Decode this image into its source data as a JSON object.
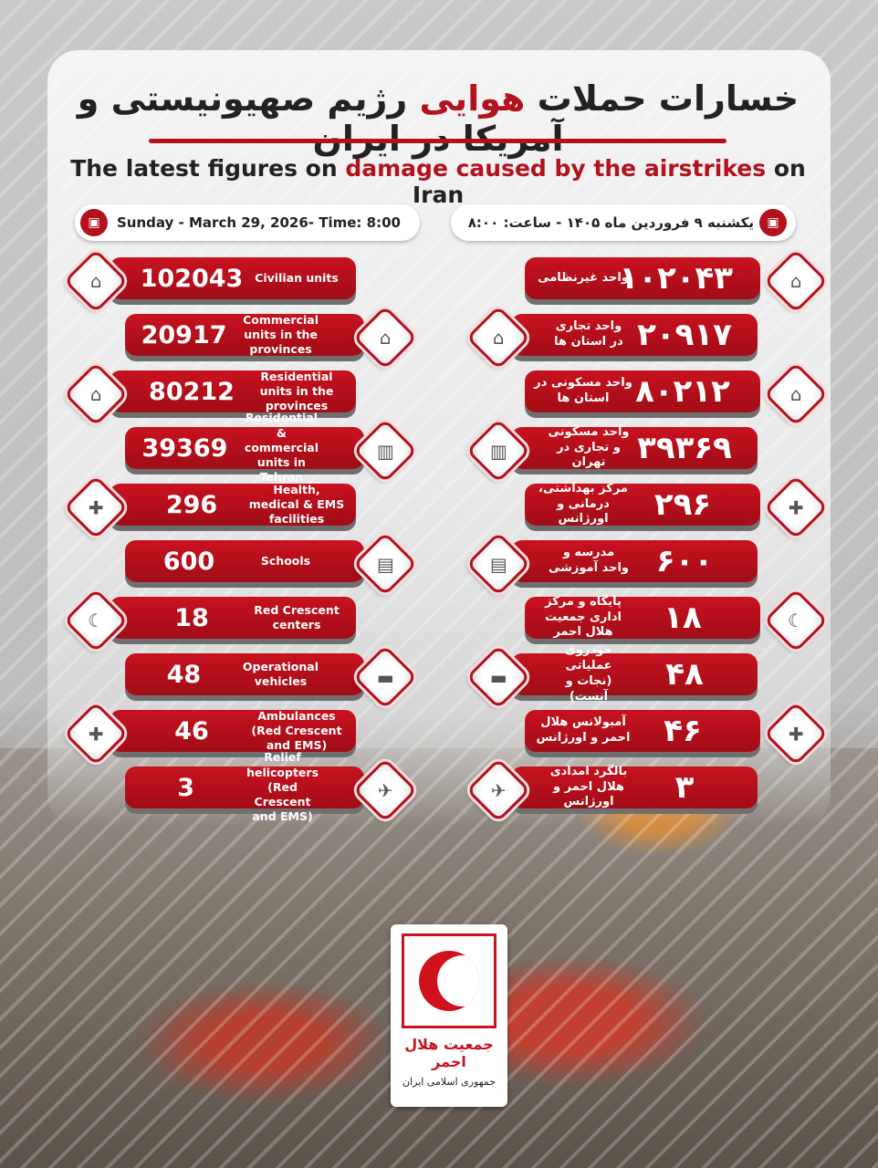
{
  "header": {
    "title_fa_pre": "خسارات حملات",
    "title_fa_hl": "هوایی",
    "title_fa_post": "رژیم صهیونیستی و آمریکا در ایران",
    "title_en_pre": "The latest figures on ",
    "title_en_hl": "damage caused by the airstrikes",
    "title_en_post": " on Iran"
  },
  "dates": {
    "en": "Sunday - March 29, 2026- Time: 8:00",
    "fa": "یکشنبه ۹ فروردین ماه ۱۴۰۵ - ساعت: ۸:۰۰",
    "icon": "calendar-icon"
  },
  "accent": "#b3121d",
  "rows": [
    {
      "icon": "house-icon",
      "glyph": "⌂",
      "en_num": "102043",
      "en_label": "Civilian units",
      "fa_num": "۱۰۲۰۴۳",
      "fa_label": "واحد غیرنظامی"
    },
    {
      "icon": "shop-house-icon",
      "glyph": "⌂",
      "en_num": "20917",
      "en_label": "Commercial units in the provinces",
      "fa_num": "۲۰۹۱۷",
      "fa_label": "واحد تجاری در استان ها"
    },
    {
      "icon": "home-icon",
      "glyph": "⌂",
      "en_num": "80212",
      "en_label": "Residential units in the provinces",
      "fa_num": "۸۰۲۱۲",
      "fa_label": "واحد مسکونی در استان ها"
    },
    {
      "icon": "storefront-icon",
      "glyph": "▥",
      "en_num": "39369",
      "en_label": "Residential & commercial units in Tehran",
      "fa_num": "۳۹۳۶۹",
      "fa_label": "واحد مسکونی و تجاری در تهران"
    },
    {
      "icon": "medical-building-icon",
      "glyph": "✚",
      "en_num": "296",
      "en_label": "Health, medical & EMS facilities",
      "fa_num": "۲۹۶",
      "fa_label": "مرکز بهداشتی، درمانی و اورژانس"
    },
    {
      "icon": "school-book-icon",
      "glyph": "▤",
      "en_num": "600",
      "en_label": "Schools",
      "fa_num": "۶۰۰",
      "fa_label": "مدرسه و واحد آموزشی"
    },
    {
      "icon": "red-crescent-building-icon",
      "glyph": "☾",
      "en_num": "18",
      "en_label": "Red Crescent centers",
      "fa_num": "۱۸",
      "fa_label": "پایگاه و مرکز اداری جمعیت هلال احمر"
    },
    {
      "icon": "car-icon",
      "glyph": "▬",
      "en_num": "48",
      "en_label": "Operational vehicles",
      "fa_num": "۴۸",
      "fa_label": "خودروی عملیاتی (نجات و آنست)"
    },
    {
      "icon": "ambulance-icon",
      "glyph": "✚",
      "en_num": "46",
      "en_label": "Ambulances (Red Crescent and EMS)",
      "fa_num": "۴۶",
      "fa_label": "آمبولانس هلال احمر و اورژانس"
    },
    {
      "icon": "helicopter-icon",
      "glyph": "✈",
      "en_num": "3",
      "en_label": "Relief helicopters (Red Crescent and EMS)",
      "fa_num": "۳",
      "fa_label": "بالگرد امدادی هلال احمر و اورژانس"
    }
  ],
  "logo": {
    "line1": "جمعیت هلال احمر",
    "line2": "جمهوری اسلامی ایران"
  }
}
